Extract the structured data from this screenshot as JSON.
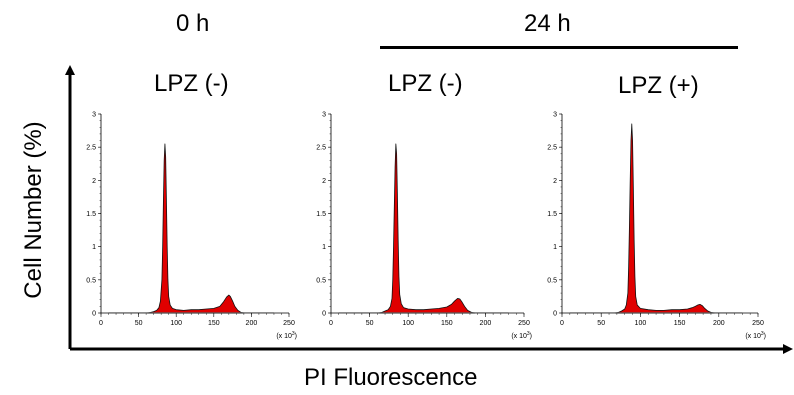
{
  "header": {
    "time_0": "0 h",
    "time_24": "24 h"
  },
  "axes": {
    "ylabel": "Cell Number (%)",
    "xlabel": "PI Fluorescence"
  },
  "chart_data": [
    {
      "type": "area",
      "title": "LPZ (-)",
      "xlim": [
        0,
        250
      ],
      "ylim": [
        0,
        3
      ],
      "xticks": [
        0,
        50,
        100,
        150,
        200,
        250
      ],
      "yticks": [
        0,
        0.5,
        1,
        1.5,
        2,
        2.5,
        3
      ],
      "x_unit": "(x 10",
      "x_unit_sup": "3",
      "x_unit_close": ")",
      "series": [
        {
          "color": "#e00000",
          "points": [
            [
              62,
              0
            ],
            [
              66,
              0.01
            ],
            [
              70,
              0.02
            ],
            [
              74,
              0.04
            ],
            [
              77,
              0.08
            ],
            [
              79,
              0.18
            ],
            [
              81,
              0.5
            ],
            [
              82,
              1.0
            ],
            [
              83,
              1.7
            ],
            [
              84,
              2.3
            ],
            [
              85,
              2.55
            ],
            [
              86,
              2.35
            ],
            [
              87,
              1.7
            ],
            [
              88,
              1.0
            ],
            [
              89,
              0.5
            ],
            [
              90,
              0.25
            ],
            [
              92,
              0.12
            ],
            [
              95,
              0.07
            ],
            [
              100,
              0.05
            ],
            [
              110,
              0.04
            ],
            [
              120,
              0.05
            ],
            [
              130,
              0.05
            ],
            [
              140,
              0.06
            ],
            [
              150,
              0.07
            ],
            [
              158,
              0.1
            ],
            [
              163,
              0.17
            ],
            [
              167,
              0.24
            ],
            [
              170,
              0.27
            ],
            [
              172,
              0.25
            ],
            [
              175,
              0.18
            ],
            [
              178,
              0.1
            ],
            [
              182,
              0.04
            ],
            [
              186,
              0.01
            ],
            [
              190,
              0
            ]
          ]
        }
      ]
    },
    {
      "type": "area",
      "title": "LPZ (-)",
      "xlim": [
        0,
        250
      ],
      "ylim": [
        0,
        3
      ],
      "xticks": [
        0,
        50,
        100,
        150,
        200,
        250
      ],
      "yticks": [
        0,
        0.5,
        1,
        1.5,
        2,
        2.5,
        3
      ],
      "x_unit": "(x 10",
      "x_unit_sup": "3",
      "x_unit_close": ")",
      "series": [
        {
          "color": "#e00000",
          "points": [
            [
              62,
              0
            ],
            [
              66,
              0.01
            ],
            [
              70,
              0.03
            ],
            [
              74,
              0.05
            ],
            [
              77,
              0.1
            ],
            [
              79,
              0.22
            ],
            [
              80,
              0.5
            ],
            [
              81,
              1.0
            ],
            [
              82,
              1.6
            ],
            [
              83,
              2.2
            ],
            [
              84,
              2.55
            ],
            [
              85,
              2.4
            ],
            [
              86,
              1.8
            ],
            [
              87,
              1.1
            ],
            [
              88,
              0.55
            ],
            [
              89,
              0.28
            ],
            [
              91,
              0.14
            ],
            [
              94,
              0.08
            ],
            [
              100,
              0.06
            ],
            [
              110,
              0.05
            ],
            [
              120,
              0.05
            ],
            [
              130,
              0.06
            ],
            [
              140,
              0.07
            ],
            [
              150,
              0.09
            ],
            [
              156,
              0.13
            ],
            [
              160,
              0.18
            ],
            [
              164,
              0.22
            ],
            [
              167,
              0.21
            ],
            [
              170,
              0.16
            ],
            [
              173,
              0.1
            ],
            [
              177,
              0.04
            ],
            [
              182,
              0.01
            ],
            [
              186,
              0
            ]
          ]
        }
      ]
    },
    {
      "type": "area",
      "title": "LPZ (+)",
      "xlim": [
        0,
        250
      ],
      "ylim": [
        0,
        3
      ],
      "xticks": [
        0,
        50,
        100,
        150,
        200,
        250
      ],
      "yticks": [
        0,
        0.5,
        1,
        1.5,
        2,
        2.5,
        3
      ],
      "x_unit": "(x 10",
      "x_unit_sup": "3",
      "x_unit_close": ")",
      "series": [
        {
          "color": "#e00000",
          "points": [
            [
              68,
              0
            ],
            [
              72,
              0.01
            ],
            [
              76,
              0.03
            ],
            [
              80,
              0.06
            ],
            [
              82,
              0.12
            ],
            [
              84,
              0.3
            ],
            [
              85,
              0.7
            ],
            [
              86,
              1.3
            ],
            [
              87,
              2.0
            ],
            [
              88,
              2.6
            ],
            [
              89,
              2.85
            ],
            [
              90,
              2.6
            ],
            [
              91,
              1.9
            ],
            [
              92,
              1.1
            ],
            [
              93,
              0.55
            ],
            [
              94,
              0.25
            ],
            [
              96,
              0.12
            ],
            [
              100,
              0.07
            ],
            [
              110,
              0.05
            ],
            [
              120,
              0.04
            ],
            [
              130,
              0.04
            ],
            [
              140,
              0.05
            ],
            [
              150,
              0.05
            ],
            [
              160,
              0.06
            ],
            [
              166,
              0.08
            ],
            [
              170,
              0.1
            ],
            [
              173,
              0.12
            ],
            [
              176,
              0.13
            ],
            [
              179,
              0.11
            ],
            [
              182,
              0.07
            ],
            [
              186,
              0.03
            ],
            [
              190,
              0.01
            ],
            [
              194,
              0
            ]
          ]
        }
      ]
    }
  ]
}
